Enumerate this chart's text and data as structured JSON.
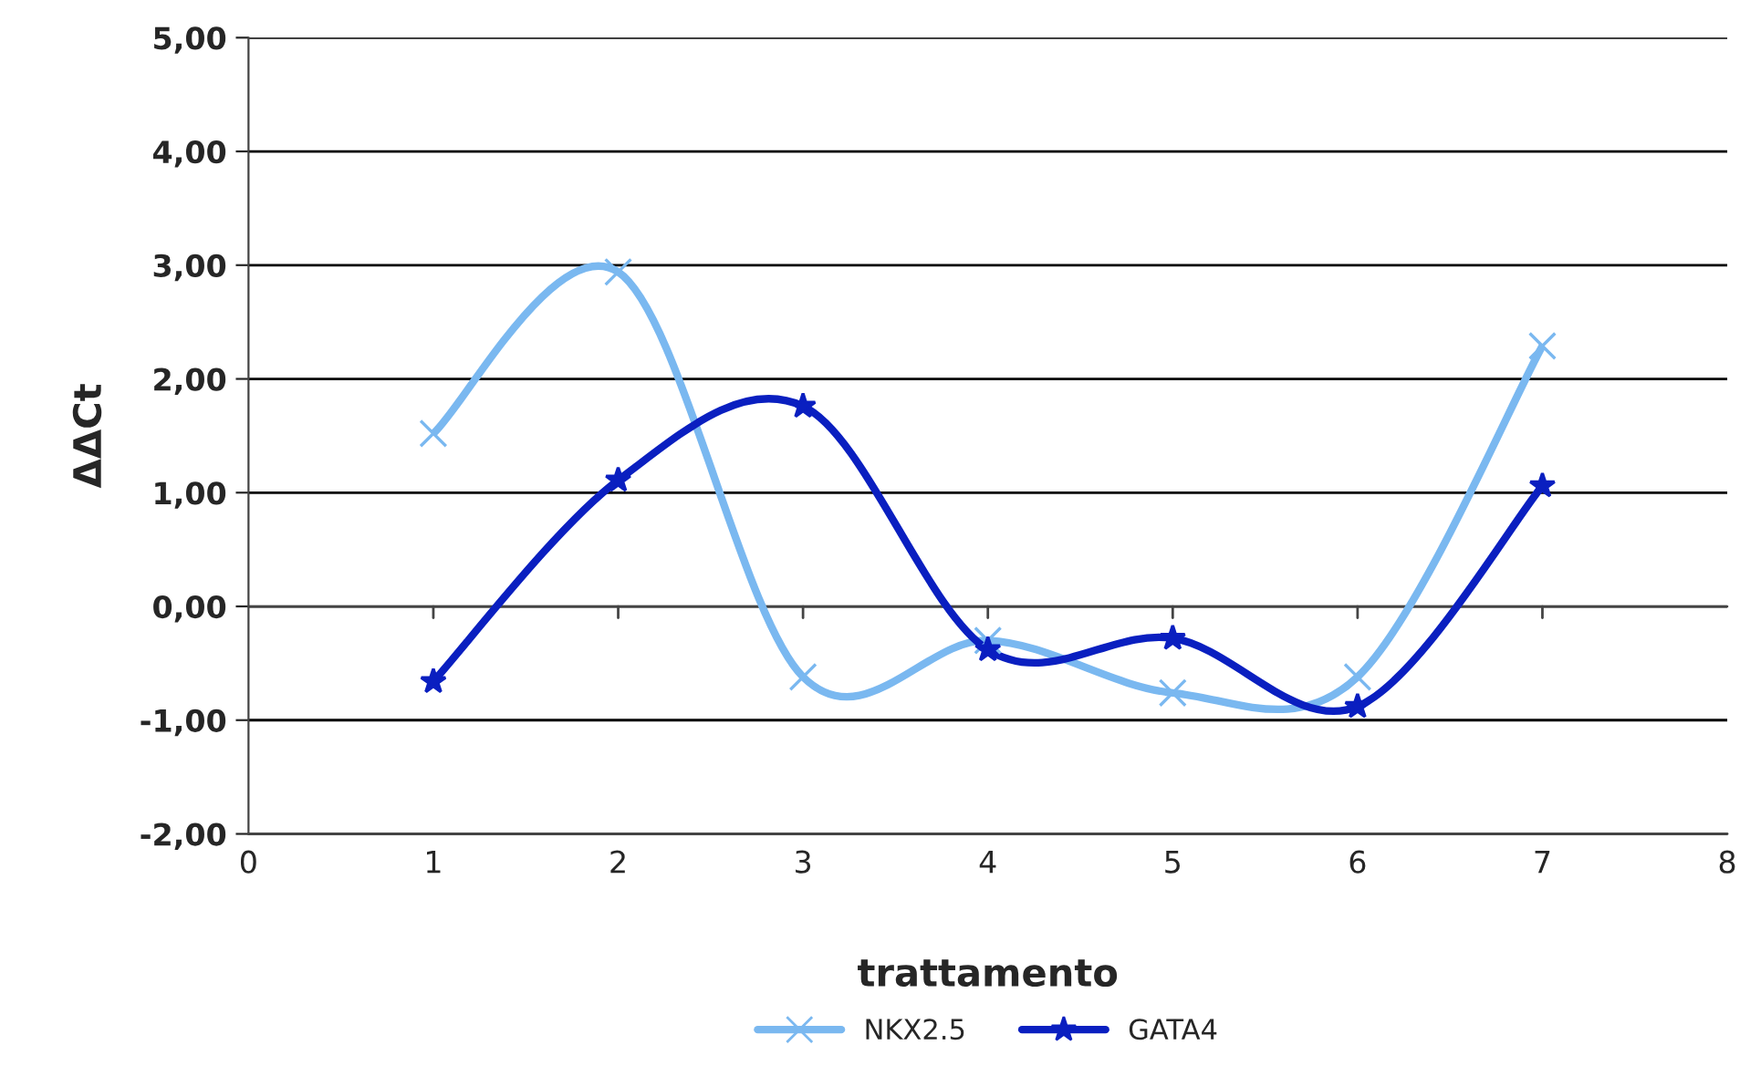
{
  "chart_data": {
    "type": "line",
    "xlabel": "trattamento",
    "ylabel": "ΔΔCt",
    "x": [
      1,
      2,
      3,
      4,
      5,
      6,
      7
    ],
    "xlim": [
      0,
      8
    ],
    "xticks": [
      0,
      1,
      2,
      3,
      4,
      5,
      6,
      7,
      8
    ],
    "ylim": [
      -2,
      5
    ],
    "yticks": [
      {
        "value": -2,
        "label": "-2,00"
      },
      {
        "value": -1,
        "label": "-1,00"
      },
      {
        "value": 0,
        "label": "0,00"
      },
      {
        "value": 1,
        "label": "1,00"
      },
      {
        "value": 2,
        "label": "2,00"
      },
      {
        "value": 3,
        "label": "3,00"
      },
      {
        "value": 4,
        "label": "4,00"
      },
      {
        "value": 5,
        "label": "5,00"
      }
    ],
    "grid": "y",
    "legend": "bottom",
    "series": [
      {
        "name": "NKX2.5",
        "color": "#7ab8f0",
        "marker": "cross",
        "values": [
          1.52,
          2.94,
          -0.62,
          -0.3,
          -0.76,
          -0.62,
          2.29
        ]
      },
      {
        "name": "GATA4",
        "color": "#0a1fc0",
        "marker": "star",
        "values": [
          -0.66,
          1.11,
          1.76,
          -0.38,
          -0.28,
          -0.88,
          1.06
        ]
      }
    ]
  }
}
